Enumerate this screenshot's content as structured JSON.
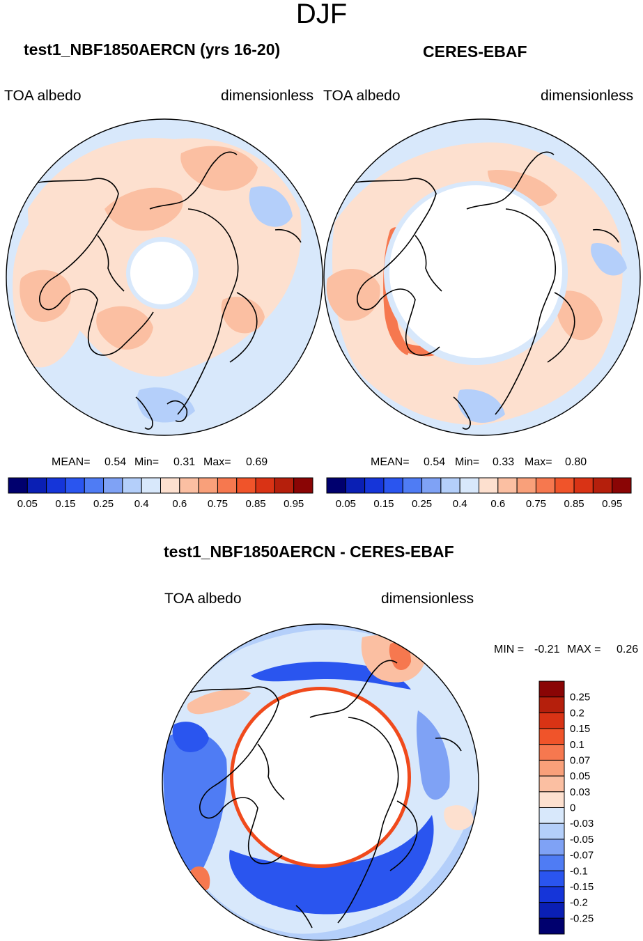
{
  "figure": {
    "season": "DJF"
  },
  "colors": {
    "ocean_light": "#d8e8fb",
    "ocean_mid": "#b4cffa",
    "land_light": "#fde0cf",
    "land_mid": "#fbbfa2",
    "coast": "#000000",
    "ring": "#f04a1c"
  },
  "panels": {
    "model": {
      "title": "test1_NBF1850AERCN (yrs 16-20)",
      "left_label": "TOA albedo",
      "right_label": "dimensionless",
      "mean_label": "MEAN=",
      "mean": "0.54",
      "min_label": "Min=",
      "min": "0.31",
      "max_label": "Max=",
      "max": "0.69"
    },
    "obs": {
      "title": "CERES-EBAF",
      "left_label": "TOA albedo",
      "right_label": "dimensionless",
      "mean_label": "MEAN=",
      "mean": "0.54",
      "min_label": "Min=",
      "min": "0.33",
      "max_label": "Max=",
      "max": "0.80"
    },
    "diff": {
      "title": "test1_NBF1850AERCN - CERES-EBAF",
      "left_label": "TOA albedo",
      "right_label": "dimensionless",
      "min_label": "MIN =",
      "min": "-0.21",
      "max_label": "MAX =",
      "max": "0.26"
    }
  },
  "chart_data": [
    {
      "type": "heatmap",
      "projection": "north polar stereographic",
      "title": "test1_NBF1850AERCN (yrs 16-20)",
      "variable": "TOA albedo",
      "units": "dimensionless",
      "mean": 0.54,
      "min": 0.31,
      "max": 0.69,
      "levels": [
        0.05,
        0.1,
        0.15,
        0.2,
        0.25,
        0.3,
        0.4,
        0.5,
        0.6,
        0.65,
        0.7,
        0.75,
        0.8,
        0.85,
        0.9,
        0.95
      ],
      "colorbar_labels": [
        "0.05",
        "0.15",
        "0.25",
        "0.4",
        "0.6",
        "0.75",
        "0.85",
        "0.95"
      ],
      "colors": [
        "#00006e",
        "#0a1fb4",
        "#1535d9",
        "#2a55ef",
        "#4f7cf4",
        "#7fa2f5",
        "#b4cffa",
        "#d8e8fb",
        "#fde0cf",
        "#fbbfa2",
        "#f9a07a",
        "#f6784f",
        "#f0542a",
        "#d93315",
        "#b51f0c",
        "#8a0505"
      ]
    },
    {
      "type": "heatmap",
      "projection": "north polar stereographic",
      "title": "CERES-EBAF",
      "variable": "TOA albedo",
      "units": "dimensionless",
      "mean": 0.54,
      "min": 0.33,
      "max": 0.8,
      "levels": [
        0.05,
        0.1,
        0.15,
        0.2,
        0.25,
        0.3,
        0.4,
        0.5,
        0.6,
        0.65,
        0.7,
        0.75,
        0.8,
        0.85,
        0.9,
        0.95
      ],
      "colorbar_labels": [
        "0.05",
        "0.15",
        "0.25",
        "0.4",
        "0.6",
        "0.75",
        "0.85",
        "0.95"
      ],
      "colors": [
        "#00006e",
        "#0a1fb4",
        "#1535d9",
        "#2a55ef",
        "#4f7cf4",
        "#7fa2f5",
        "#b4cffa",
        "#d8e8fb",
        "#fde0cf",
        "#fbbfa2",
        "#f9a07a",
        "#f6784f",
        "#f0542a",
        "#d93315",
        "#b51f0c",
        "#8a0505"
      ]
    },
    {
      "type": "heatmap",
      "projection": "north polar stereographic",
      "title": "test1_NBF1850AERCN - CERES-EBAF",
      "variable": "TOA albedo",
      "units": "dimensionless",
      "min": -0.21,
      "max": 0.26,
      "colorbar_labels": [
        "0.25",
        "0.2",
        "0.15",
        "0.1",
        "0.07",
        "0.05",
        "0.03",
        "0",
        "-0.03",
        "-0.05",
        "-0.07",
        "-0.1",
        "-0.15",
        "-0.2",
        "-0.25"
      ],
      "colors": [
        "#8a0505",
        "#b51f0c",
        "#d93315",
        "#f0542a",
        "#f6784f",
        "#f9a07a",
        "#fbbfa2",
        "#fde0cf",
        "#d8e8fb",
        "#b4cffa",
        "#7fa2f5",
        "#4f7cf4",
        "#2a55ef",
        "#1535d9",
        "#0a1fb4",
        "#00006e"
      ]
    }
  ]
}
